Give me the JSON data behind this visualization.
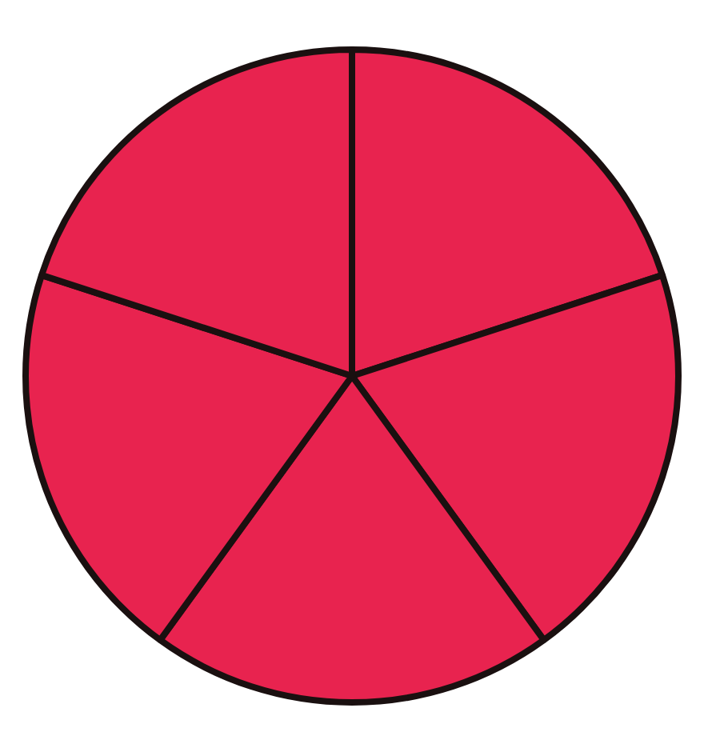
{
  "chart_data": {
    "type": "pie",
    "categories": [
      null,
      null,
      null,
      null,
      null
    ],
    "values": [
      20,
      20,
      20,
      20,
      20
    ],
    "colors": [
      "#e8234f",
      "#e8234f",
      "#e8234f",
      "#e8234f",
      "#e8234f"
    ],
    "legend": false
  }
}
